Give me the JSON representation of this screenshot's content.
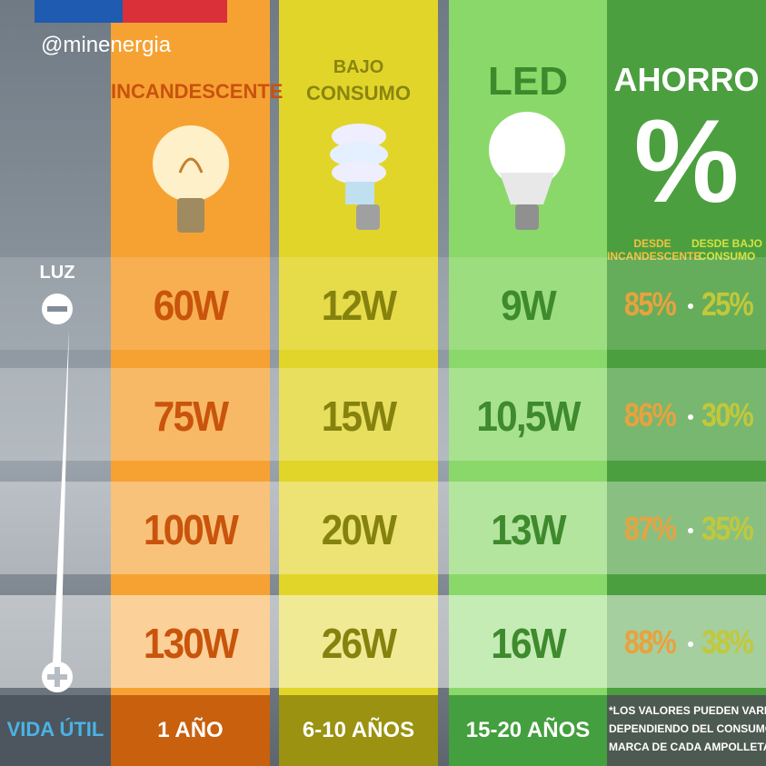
{
  "handle": "@minenergia",
  "columns": {
    "incandescent": "INCANDESCENTE",
    "low_energy": [
      "BAJO",
      "CONSUMO"
    ],
    "led": "LED",
    "savings": {
      "title": "AHORRO",
      "symbol": "%",
      "sub": [
        [
          "DESDE",
          "INCANDESCENTE"
        ],
        [
          "DESDE BAJO",
          "CONSUMO"
        ]
      ]
    }
  },
  "side": {
    "label": "LUZ",
    "lifespan_label": "VIDA ÚTIL"
  },
  "rows": [
    [
      "60W",
      "12W",
      "9W",
      "85%",
      "25%"
    ],
    [
      "75W",
      "15W",
      "10,5W",
      "86%",
      "30%"
    ],
    [
      "100W",
      "20W",
      "13W",
      "87%",
      "35%"
    ],
    [
      "130W",
      "26W",
      "16W",
      "88%",
      "38%"
    ]
  ],
  "lifespan": [
    "1 AÑO",
    "6-10 AÑOS",
    "15-20 AÑOS"
  ],
  "note": [
    "*LOS VALORES PUEDEN VARIAR",
    "DEPENDIENDO DEL CONSUMO/",
    "MARCA DE CADA AMPOLLETA"
  ]
}
